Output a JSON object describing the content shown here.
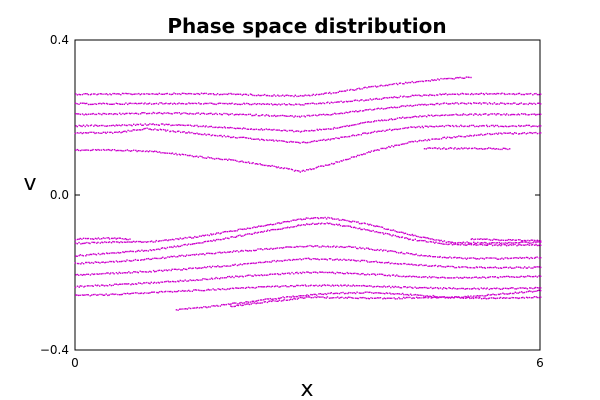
{
  "chart_data": {
    "type": "scatter",
    "title": "Phase space distribution",
    "xlabel": "x",
    "ylabel": "v",
    "xlim": [
      0,
      6
    ],
    "ylim": [
      -0.4,
      0.4
    ],
    "x_ticks": [
      0,
      6
    ],
    "x_tick_labels": [
      "0",
      "6"
    ],
    "y_ticks": [
      0.4,
      0.0,
      -0.4
    ],
    "y_tick_labels": [
      "0.4",
      "0.0",
      "−0.4"
    ],
    "grid": false,
    "marker_color": "#cc00cc",
    "series": [
      {
        "values": [
          [
            0.0,
            0.262
          ],
          [
            0.5,
            0.262
          ],
          [
            1.0,
            0.263
          ],
          [
            1.5,
            0.263
          ],
          [
            2.0,
            0.262
          ],
          [
            2.5,
            0.259
          ],
          [
            2.9,
            0.257
          ],
          [
            3.3,
            0.265
          ],
          [
            3.8,
            0.28
          ],
          [
            4.3,
            0.292
          ],
          [
            4.8,
            0.302
          ],
          [
            5.1,
            0.305
          ]
        ]
      },
      {
        "values": [
          [
            0.0,
            0.237
          ],
          [
            0.5,
            0.237
          ],
          [
            1.0,
            0.238
          ],
          [
            1.5,
            0.238
          ],
          [
            2.0,
            0.237
          ],
          [
            2.5,
            0.236
          ],
          [
            2.9,
            0.235
          ],
          [
            3.3,
            0.24
          ],
          [
            3.8,
            0.248
          ],
          [
            4.3,
            0.257
          ],
          [
            4.8,
            0.262
          ],
          [
            5.4,
            0.263
          ],
          [
            6.0,
            0.262
          ]
        ]
      },
      {
        "values": [
          [
            0.0,
            0.21
          ],
          [
            0.5,
            0.211
          ],
          [
            1.0,
            0.213
          ],
          [
            1.5,
            0.212
          ],
          [
            2.0,
            0.21
          ],
          [
            2.5,
            0.207
          ],
          [
            2.9,
            0.204
          ],
          [
            3.3,
            0.21
          ],
          [
            3.8,
            0.222
          ],
          [
            4.3,
            0.232
          ],
          [
            4.8,
            0.238
          ],
          [
            5.4,
            0.238
          ],
          [
            6.0,
            0.237
          ]
        ]
      },
      {
        "values": [
          [
            0.0,
            0.18
          ],
          [
            0.5,
            0.181
          ],
          [
            1.0,
            0.184
          ],
          [
            1.5,
            0.181
          ],
          [
            2.0,
            0.175
          ],
          [
            2.5,
            0.17
          ],
          [
            2.9,
            0.166
          ],
          [
            3.3,
            0.173
          ],
          [
            3.8,
            0.19
          ],
          [
            4.3,
            0.203
          ],
          [
            4.8,
            0.209
          ],
          [
            5.4,
            0.21
          ],
          [
            6.0,
            0.21
          ]
        ]
      },
      {
        "values": [
          [
            0.0,
            0.162
          ],
          [
            0.5,
            0.162
          ],
          [
            0.9,
            0.173
          ],
          [
            1.5,
            0.162
          ],
          [
            2.0,
            0.152
          ],
          [
            2.5,
            0.143
          ],
          [
            2.9,
            0.136
          ],
          [
            3.3,
            0.146
          ],
          [
            3.8,
            0.163
          ],
          [
            4.3,
            0.176
          ],
          [
            4.8,
            0.18
          ],
          [
            5.4,
            0.18
          ],
          [
            6.0,
            0.18
          ]
        ]
      },
      {
        "values": [
          [
            0.0,
            0.118
          ],
          [
            0.5,
            0.117
          ],
          [
            1.0,
            0.115
          ],
          [
            1.5,
            0.102
          ],
          [
            2.0,
            0.092
          ],
          [
            2.5,
            0.078
          ],
          [
            2.9,
            0.062
          ],
          [
            3.3,
            0.082
          ],
          [
            3.8,
            0.113
          ],
          [
            4.3,
            0.138
          ],
          [
            4.8,
            0.15
          ],
          [
            5.4,
            0.16
          ],
          [
            6.0,
            0.162
          ]
        ]
      },
      {
        "values": [
          [
            4.5,
            0.122
          ],
          [
            5.0,
            0.122
          ],
          [
            5.6,
            0.121
          ]
        ]
      },
      {
        "values": [
          [
            0.0,
            -0.112
          ],
          [
            0.4,
            -0.11
          ],
          [
            0.7,
            -0.112
          ]
        ]
      },
      {
        "values": [
          [
            0.0,
            -0.123
          ],
          [
            0.5,
            -0.12
          ],
          [
            1.0,
            -0.118
          ],
          [
            1.5,
            -0.108
          ],
          [
            2.0,
            -0.092
          ],
          [
            2.5,
            -0.075
          ],
          [
            3.0,
            -0.058
          ],
          [
            3.3,
            -0.058
          ],
          [
            3.8,
            -0.075
          ],
          [
            4.3,
            -0.1
          ],
          [
            4.8,
            -0.12
          ],
          [
            5.4,
            -0.123
          ],
          [
            6.0,
            -0.12
          ]
        ]
      },
      {
        "values": [
          [
            5.1,
            -0.112
          ],
          [
            5.5,
            -0.114
          ],
          [
            6.0,
            -0.117
          ]
        ]
      },
      {
        "values": [
          [
            0.0,
            -0.155
          ],
          [
            0.5,
            -0.148
          ],
          [
            1.0,
            -0.14
          ],
          [
            1.5,
            -0.125
          ],
          [
            2.0,
            -0.108
          ],
          [
            2.5,
            -0.09
          ],
          [
            3.0,
            -0.073
          ],
          [
            3.3,
            -0.072
          ],
          [
            3.8,
            -0.09
          ],
          [
            4.3,
            -0.112
          ],
          [
            4.8,
            -0.125
          ],
          [
            5.4,
            -0.127
          ],
          [
            6.0,
            -0.128
          ]
        ]
      },
      {
        "values": [
          [
            0.0,
            -0.175
          ],
          [
            0.5,
            -0.17
          ],
          [
            1.0,
            -0.163
          ],
          [
            1.5,
            -0.153
          ],
          [
            2.0,
            -0.145
          ],
          [
            2.5,
            -0.137
          ],
          [
            3.0,
            -0.13
          ],
          [
            3.5,
            -0.132
          ],
          [
            4.0,
            -0.142
          ],
          [
            4.5,
            -0.155
          ],
          [
            5.0,
            -0.162
          ],
          [
            5.5,
            -0.162
          ],
          [
            6.0,
            -0.16
          ]
        ]
      },
      {
        "values": [
          [
            0.0,
            -0.205
          ],
          [
            0.5,
            -0.2
          ],
          [
            1.0,
            -0.195
          ],
          [
            1.5,
            -0.188
          ],
          [
            2.0,
            -0.18
          ],
          [
            2.5,
            -0.17
          ],
          [
            3.0,
            -0.163
          ],
          [
            3.5,
            -0.165
          ],
          [
            4.0,
            -0.173
          ],
          [
            4.5,
            -0.18
          ],
          [
            5.0,
            -0.185
          ],
          [
            5.5,
            -0.186
          ],
          [
            6.0,
            -0.185
          ]
        ]
      },
      {
        "values": [
          [
            0.0,
            -0.235
          ],
          [
            0.5,
            -0.23
          ],
          [
            1.0,
            -0.225
          ],
          [
            1.5,
            -0.218
          ],
          [
            2.0,
            -0.21
          ],
          [
            2.5,
            -0.203
          ],
          [
            3.0,
            -0.198
          ],
          [
            3.5,
            -0.2
          ],
          [
            4.0,
            -0.205
          ],
          [
            4.5,
            -0.21
          ],
          [
            5.0,
            -0.212
          ],
          [
            5.5,
            -0.21
          ],
          [
            6.0,
            -0.208
          ]
        ]
      },
      {
        "values": [
          [
            0.0,
            -0.258
          ],
          [
            0.5,
            -0.255
          ],
          [
            1.0,
            -0.25
          ],
          [
            1.5,
            -0.245
          ],
          [
            2.0,
            -0.24
          ],
          [
            2.5,
            -0.235
          ],
          [
            3.0,
            -0.232
          ],
          [
            3.5,
            -0.232
          ],
          [
            4.0,
            -0.235
          ],
          [
            4.5,
            -0.238
          ],
          [
            5.0,
            -0.24
          ],
          [
            5.5,
            -0.24
          ],
          [
            6.0,
            -0.238
          ]
        ]
      },
      {
        "values": [
          [
            1.3,
            -0.295
          ],
          [
            1.8,
            -0.285
          ],
          [
            2.3,
            -0.272
          ],
          [
            2.8,
            -0.26
          ],
          [
            3.3,
            -0.252
          ],
          [
            3.8,
            -0.25
          ],
          [
            4.3,
            -0.255
          ],
          [
            4.8,
            -0.262
          ],
          [
            5.3,
            -0.265
          ],
          [
            6.0,
            -0.262
          ]
        ]
      },
      {
        "values": [
          [
            2.0,
            -0.285
          ],
          [
            3.0,
            -0.262
          ],
          [
            4.0,
            -0.265
          ],
          [
            5.0,
            -0.262
          ],
          [
            6.0,
            -0.245
          ]
        ]
      }
    ]
  }
}
